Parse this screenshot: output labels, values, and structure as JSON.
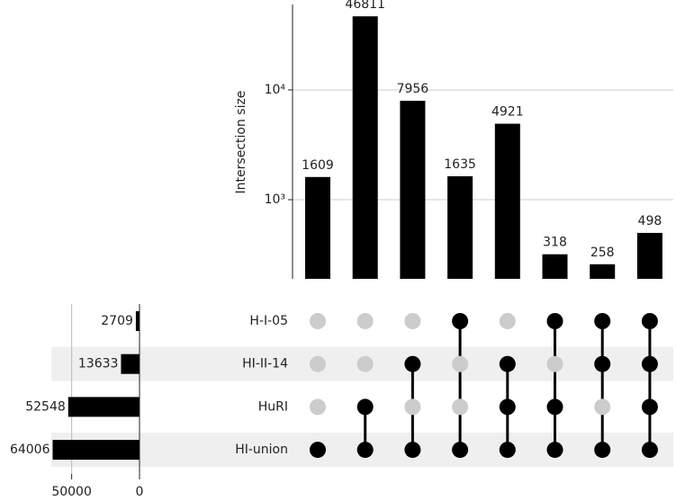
{
  "chart_data": {
    "type": "upset",
    "ylabel": "Intersection size",
    "yscale": "log",
    "ylim": [
      190,
      60000
    ],
    "yticks": [
      {
        "value": 1000,
        "label": "10³"
      },
      {
        "value": 10000,
        "label": "10⁴"
      }
    ],
    "grid": true,
    "color": "#000000",
    "inactive_color": "#cccccc",
    "shade_color": "#efefef",
    "sets": [
      "H-I-05",
      "HI-II-14",
      "HuRI",
      "HI-union"
    ],
    "set_sizes": [
      2709,
      13633,
      52548,
      64006
    ],
    "set_xlim": [
      0,
      65000
    ],
    "set_xticks": [
      50000,
      0
    ],
    "intersection_sizes": [
      1609,
      46811,
      7956,
      1635,
      4921,
      318,
      258,
      498
    ],
    "membership": [
      [
        false,
        false,
        false,
        true
      ],
      [
        false,
        false,
        true,
        true
      ],
      [
        false,
        true,
        false,
        true
      ],
      [
        true,
        false,
        false,
        true
      ],
      [
        false,
        true,
        true,
        true
      ],
      [
        true,
        false,
        true,
        true
      ],
      [
        true,
        true,
        false,
        true
      ],
      [
        true,
        true,
        true,
        true
      ]
    ]
  }
}
